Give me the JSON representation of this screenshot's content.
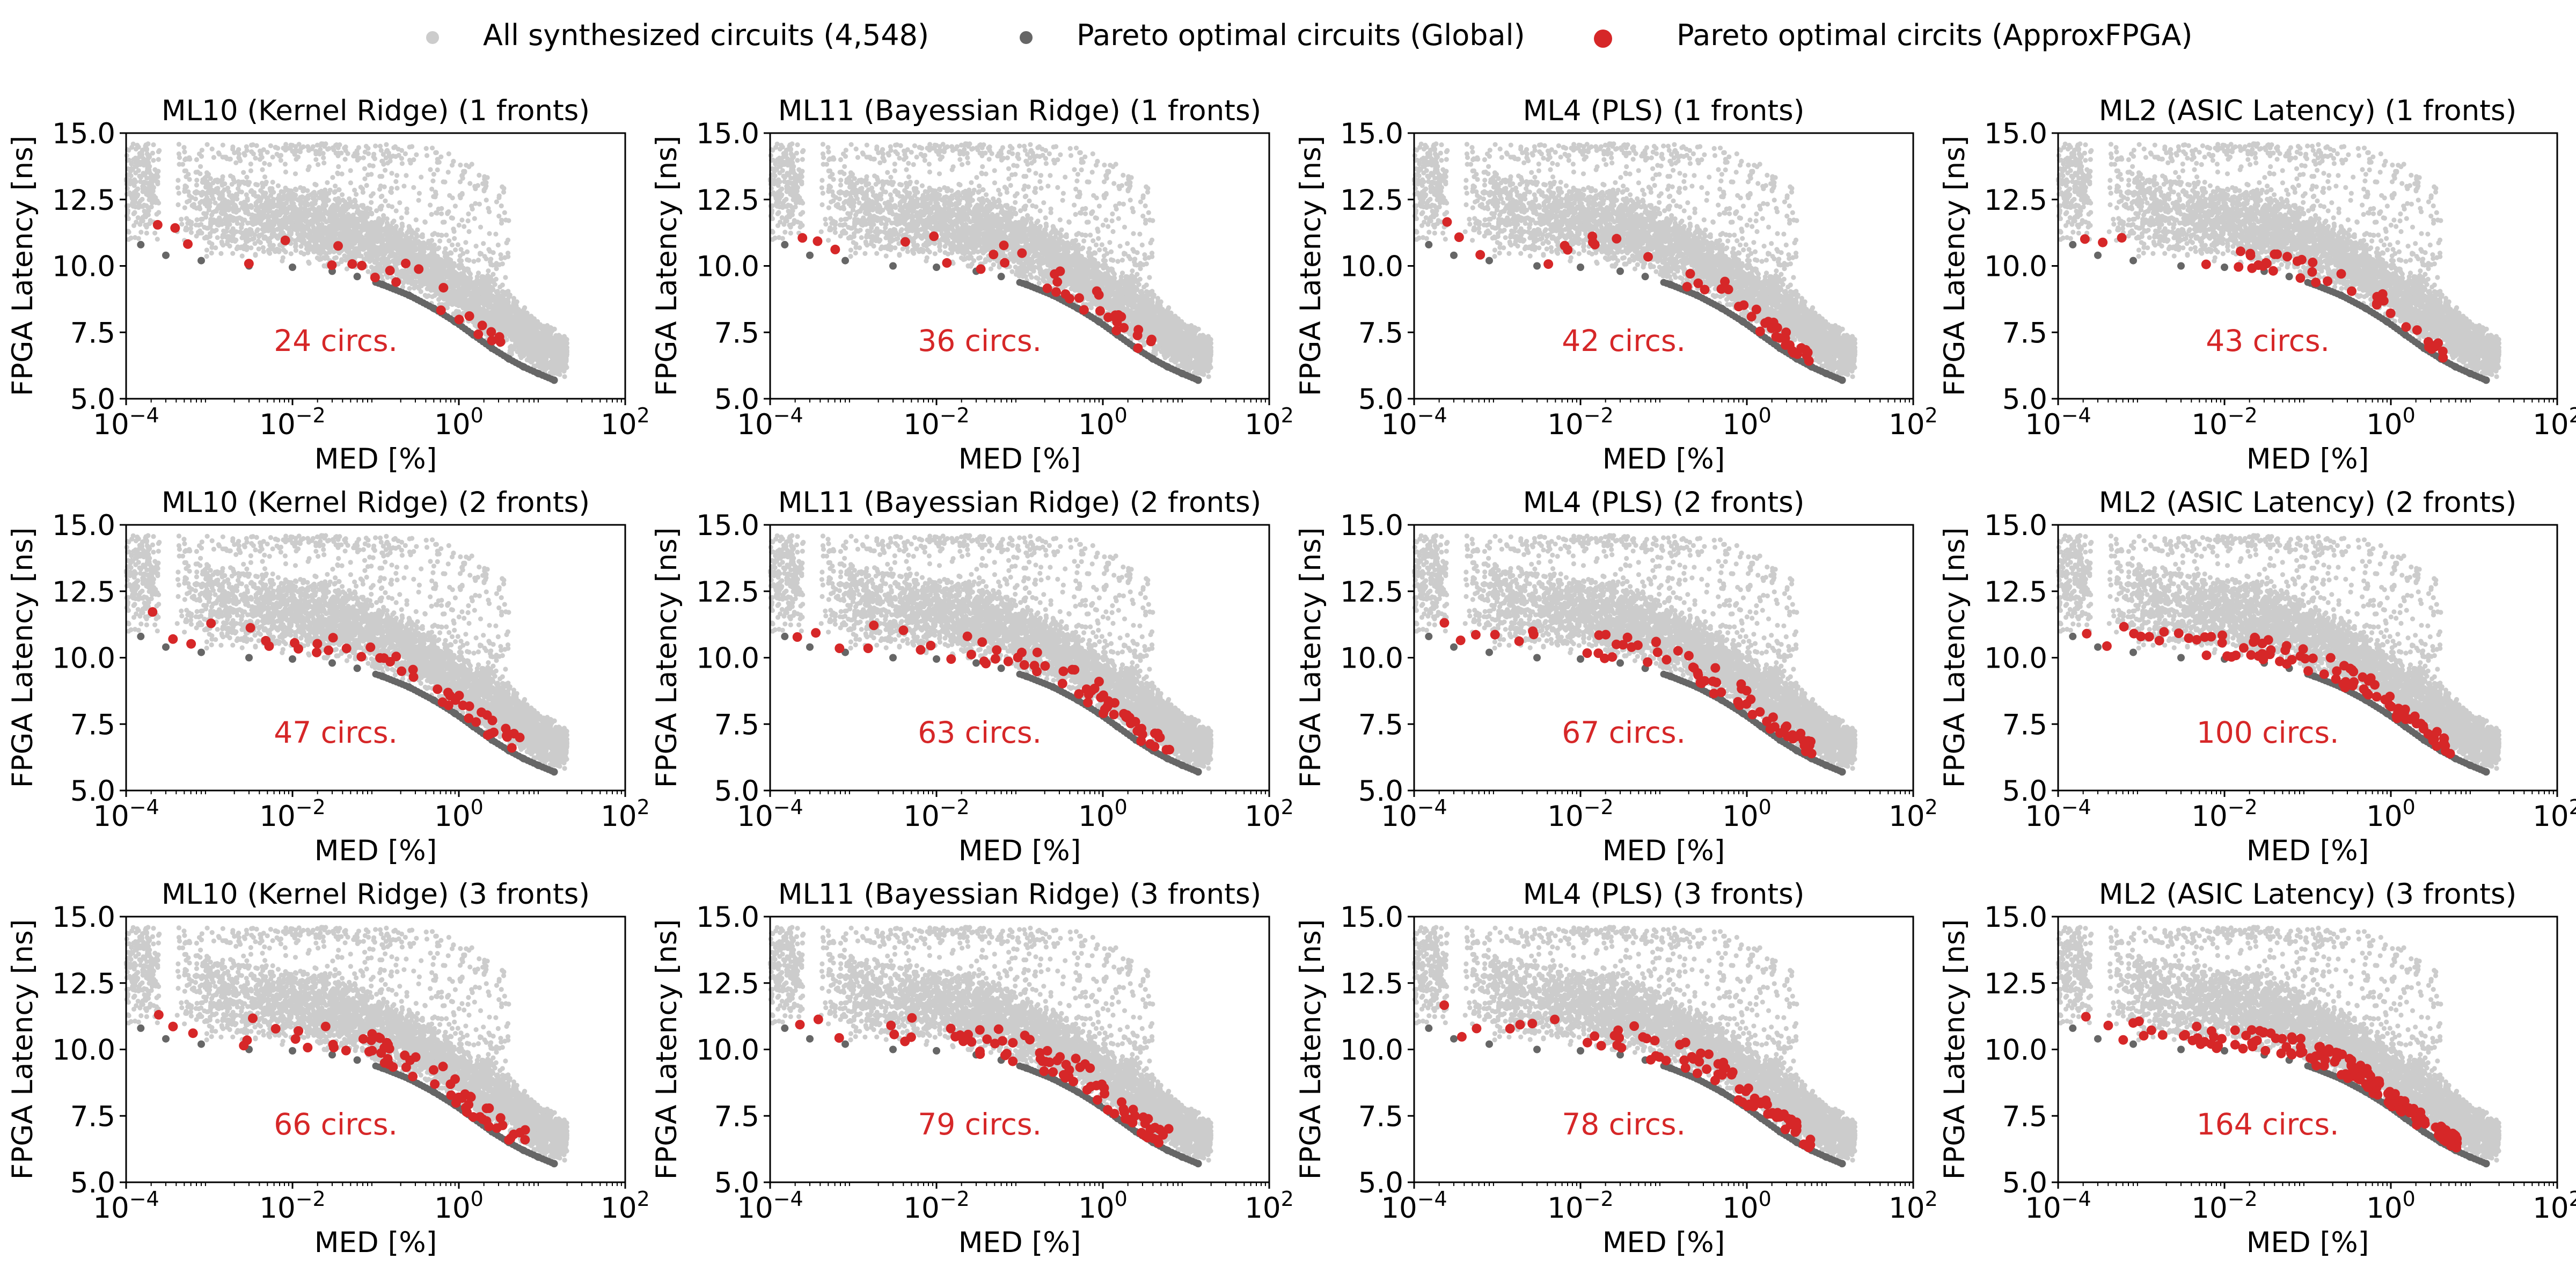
{
  "legend": {
    "placement": "top-center",
    "items": [
      {
        "label": "All synthesized circuits (4,548)",
        "color": "#cccccc"
      },
      {
        "label": "Pareto optimal circuits (Global)",
        "color": "#666666"
      },
      {
        "label": "Pareto optimal circits (ApproxFPGA)",
        "color": "#d62728"
      }
    ]
  },
  "colors": {
    "all": "#cccccc",
    "global": "#666666",
    "approx": "#d62728",
    "annotation": "#d62728"
  },
  "axes": {
    "xlabel": "MED [%]",
    "ylabel": "FPGA Latency [ns]",
    "xscale": "log",
    "xlim": [
      0.0001,
      100
    ],
    "ylim": [
      5.0,
      15.0
    ],
    "xticks": [
      0.0001,
      0.01,
      1,
      100
    ],
    "xtick_mantissa": [
      "10",
      "10",
      "10",
      "10"
    ],
    "xtick_exponent": [
      "−4",
      "−2",
      "0",
      "2"
    ],
    "yticks": [
      5.0,
      7.5,
      10.0,
      12.5,
      15.0
    ],
    "ytick_labels": [
      "5.0",
      "7.5",
      "10.0",
      "12.5",
      "15.0"
    ],
    "grid": false
  },
  "chart_data": {
    "type": "scatter",
    "layout": "3 rows x 4 columns of subplots",
    "shared_series": [
      {
        "name": "All synthesized circuits (4,548)",
        "count": 4548,
        "note_source": "cloud of points over MED 1e-4..20, latency 5.6..14.5"
      },
      {
        "name": "Pareto optimal circuits (Global)",
        "points": [
          [
            0.00015,
            10.8
          ],
          [
            0.0003,
            10.4
          ],
          [
            0.0008,
            10.2
          ],
          [
            0.003,
            10.0
          ],
          [
            0.01,
            9.95
          ],
          [
            0.03,
            9.8
          ],
          [
            0.06,
            9.6
          ],
          [
            0.12,
            9.3
          ],
          [
            0.25,
            8.9
          ],
          [
            0.5,
            8.4
          ],
          [
            0.9,
            7.9
          ],
          [
            1.5,
            7.4
          ],
          [
            2.5,
            6.9
          ],
          [
            4,
            6.5
          ],
          [
            6,
            6.2
          ],
          [
            9,
            5.95
          ],
          [
            14,
            5.7
          ]
        ]
      }
    ],
    "subplots": [
      {
        "title": "ML10 (Kernel Ridge) (1 fronts)",
        "annotation": "24 circs.",
        "approx_count": 24
      },
      {
        "title": "ML11 (Bayessian Ridge) (1 fronts)",
        "annotation": "36 circs.",
        "approx_count": 36
      },
      {
        "title": "ML4 (PLS) (1 fronts)",
        "annotation": "42 circs.",
        "approx_count": 42
      },
      {
        "title": "ML2 (ASIC Latency) (1 fronts)",
        "annotation": "43 circs.",
        "approx_count": 43
      },
      {
        "title": "ML10 (Kernel Ridge) (2 fronts)",
        "annotation": "47 circs.",
        "approx_count": 47
      },
      {
        "title": "ML11 (Bayessian Ridge) (2 fronts)",
        "annotation": "63 circs.",
        "approx_count": 63
      },
      {
        "title": "ML4 (PLS) (2 fronts)",
        "annotation": "67 circs.",
        "approx_count": 67
      },
      {
        "title": "ML2 (ASIC Latency) (2 fronts)",
        "annotation": "100 circs.",
        "approx_count": 100
      },
      {
        "title": "ML10 (Kernel Ridge) (3 fronts)",
        "annotation": "66 circs.",
        "approx_count": 66
      },
      {
        "title": "ML11 (Bayessian Ridge) (3 fronts)",
        "annotation": "79 circs.",
        "approx_count": 79
      },
      {
        "title": "ML4 (PLS) (3 fronts)",
        "annotation": "78 circs.",
        "approx_count": 78
      },
      {
        "title": "ML2 (ASIC Latency) (3 fronts)",
        "annotation": "164 circs.",
        "approx_count": 164
      }
    ]
  }
}
